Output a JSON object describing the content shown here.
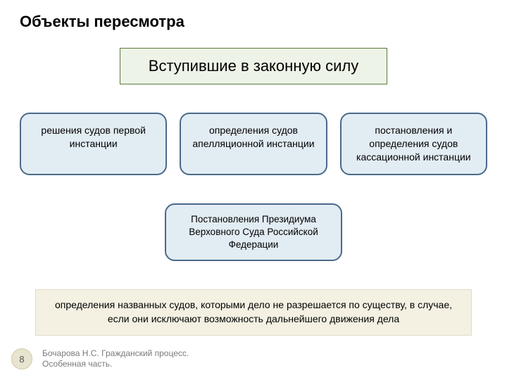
{
  "title": "Объекты пересмотра",
  "header": "Вступившие в законную силу",
  "cards": [
    "решения судов первой инстанции",
    "определения судов апелляционной инстанции",
    "постановления и определения судов кассационной инстанции"
  ],
  "mid_card": "Постановления Президиума Верховного Суда Российской Федерации",
  "note": "определения названных судов, которыми дело не разрешается по существу, в случае, если они исключают возможность дальнейшего движения дела",
  "footer_author": "Бочарова Н.С. Гражданский процесс.\nОсобенная часть.",
  "page_number": "8",
  "colors": {
    "header_bg": "#eef3e7",
    "header_border": "#5a7a3a",
    "card_bg": "#e2ecf3",
    "card_border": "#4a6a8a",
    "note_bg": "#f4f1e3",
    "page_bg": "#e9e4cf"
  }
}
